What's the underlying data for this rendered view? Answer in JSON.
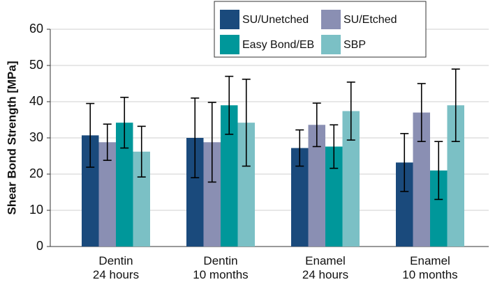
{
  "chart_data": {
    "type": "bar",
    "ylabel": "Shear Bond Strength [MPa]",
    "categories": [
      [
        "Dentin",
        "24 hours"
      ],
      [
        "Dentin",
        "10 months"
      ],
      [
        "Enamel",
        "24 hours"
      ],
      [
        "Enamel",
        "10 months"
      ]
    ],
    "series": [
      {
        "name": "SU/Unetched",
        "color": "#1a4a7c",
        "values": [
          30.7,
          30,
          27.2,
          23.2
        ],
        "errors": [
          8.8,
          11,
          5,
          8
        ]
      },
      {
        "name": "SU/Etched",
        "color": "#8a8fb3",
        "values": [
          28.8,
          28.8,
          33.6,
          37
        ],
        "errors": [
          5,
          11,
          6,
          8
        ]
      },
      {
        "name": "Easy Bond/EB",
        "color": "#00979a",
        "values": [
          34.2,
          39,
          27.6,
          21
        ],
        "errors": [
          7,
          8,
          6,
          8
        ]
      },
      {
        "name": "SBP",
        "color": "#7bc0c5",
        "values": [
          26.2,
          34.2,
          37.4,
          39
        ],
        "errors": [
          7,
          12,
          8,
          10
        ]
      }
    ],
    "ylim": [
      0,
      60
    ],
    "yticks": [
      0,
      10,
      20,
      30,
      40,
      50,
      60
    ],
    "grid": true,
    "legend": "upper center"
  }
}
